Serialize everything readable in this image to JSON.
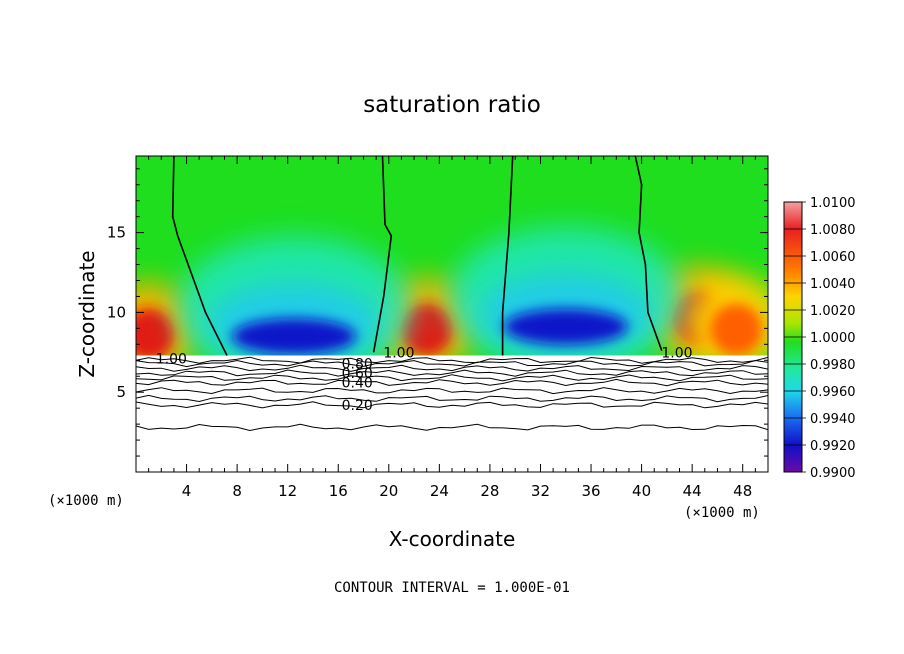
{
  "chart_data": {
    "type": "heatmap",
    "title": "saturation ratio",
    "xlabel": "X-coordinate",
    "ylabel": "Z-coordinate",
    "x_unit_label": "(×1000 m)",
    "x_unit_label_right": "(×1000 m)",
    "xlim": [
      0,
      50
    ],
    "ylim": [
      0,
      19.8
    ],
    "x_ticks": [
      4,
      8,
      12,
      16,
      20,
      24,
      28,
      32,
      36,
      40,
      44,
      48
    ],
    "y_ticks": [
      5,
      10,
      15
    ],
    "colorbar": {
      "ticks": [
        "1.0100",
        "1.0080",
        "1.0060",
        "1.0040",
        "1.0020",
        "1.0000",
        "0.9980",
        "0.9960",
        "0.9940",
        "0.9920",
        "0.9900"
      ],
      "range": [
        0.99,
        1.01
      ]
    },
    "contour_interval_text": "CONTOUR INTERVAL = 1.000E-01",
    "contour_labels": [
      {
        "text": "1.00",
        "x": 2.8,
        "z": 7.1
      },
      {
        "text": "1.00",
        "x": 20.8,
        "z": 7.5
      },
      {
        "text": "1.00",
        "x": 42.8,
        "z": 7.5
      },
      {
        "text": "0.80",
        "x": 17.5,
        "z": 6.8
      },
      {
        "text": "0.60",
        "x": 17.5,
        "z": 6.2
      },
      {
        "text": "0.40",
        "x": 17.5,
        "z": 5.6
      },
      {
        "text": "0.20",
        "x": 17.5,
        "z": 4.2
      }
    ],
    "cloud_base_z": 7.3,
    "hot_spots": [
      {
        "x": 1.0,
        "z": 9.0,
        "value": 1.008
      },
      {
        "x": 23.0,
        "z": 9.3,
        "value": 1.008
      },
      {
        "x": 44.5,
        "z": 10.0,
        "value": 1.008
      },
      {
        "x": 47.5,
        "z": 9.3,
        "value": 1.006
      }
    ],
    "cold_spots": [
      {
        "x": 12.5,
        "z": 9.0,
        "value": 0.99
      },
      {
        "x": 34.0,
        "z": 9.6,
        "value": 0.99
      }
    ],
    "unity_contours": [
      [
        [
          3.0,
          19.8
        ],
        [
          2.9,
          16.0
        ],
        [
          3.3,
          14.8
        ],
        [
          5.5,
          10.0
        ],
        [
          7.2,
          7.3
        ]
      ],
      [
        [
          19.5,
          19.8
        ],
        [
          19.7,
          15.5
        ],
        [
          20.2,
          14.8
        ],
        [
          19.6,
          11.0
        ],
        [
          18.8,
          7.5
        ]
      ],
      [
        [
          29.8,
          19.8
        ],
        [
          29.5,
          15.0
        ],
        [
          29.0,
          10.0
        ],
        [
          29.0,
          7.3
        ]
      ],
      [
        [
          39.5,
          19.8
        ],
        [
          40.0,
          18.0
        ],
        [
          39.8,
          15.0
        ],
        [
          40.3,
          13.0
        ],
        [
          40.5,
          10.0
        ],
        [
          41.6,
          7.6
        ]
      ]
    ]
  }
}
